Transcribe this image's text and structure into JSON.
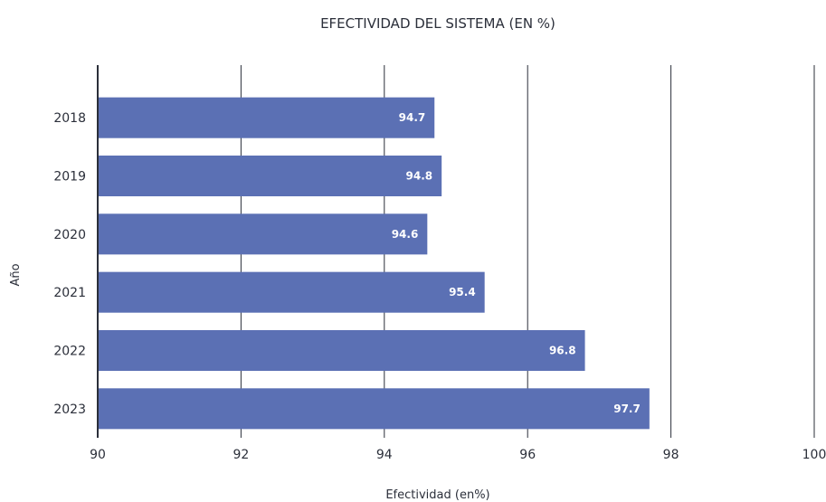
{
  "chart_data": {
    "type": "bar",
    "orientation": "horizontal",
    "title": "EFECTIVIDAD DEL SISTEMA (EN %)",
    "xlabel": "Efectividad (en%)",
    "ylabel": "Año",
    "categories": [
      "2018",
      "2019",
      "2020",
      "2021",
      "2022",
      "2023"
    ],
    "values": [
      94.7,
      94.8,
      94.6,
      95.4,
      96.8,
      97.7
    ],
    "data_labels": [
      "94.7",
      "94.8",
      "94.6",
      "95.4",
      "96.8",
      "97.7"
    ],
    "xlim": [
      90,
      100
    ],
    "xticks": [
      90,
      92,
      94,
      96,
      98,
      100
    ],
    "xtick_labels": [
      "90",
      "92",
      "94",
      "96",
      "98",
      "100"
    ],
    "grid": "vertical",
    "bar_color": "#5b70b4",
    "grid_color": "#2b2f3a"
  }
}
